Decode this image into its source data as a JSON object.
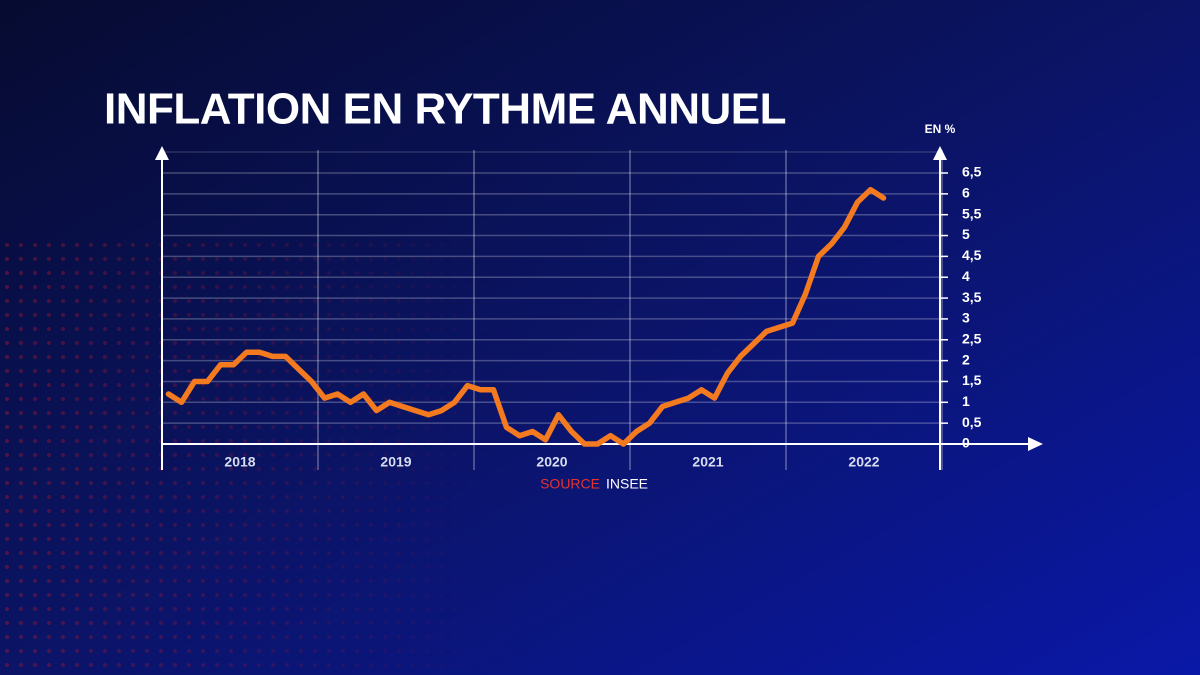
{
  "chart_data": {
    "type": "line",
    "title": "INFLATION EN RYTHME ANNUEL",
    "y_label": "EN %",
    "source_label": "SOURCE",
    "source": "INSEE",
    "categories": [
      null,
      null,
      null,
      null,
      null,
      null,
      "2018",
      null,
      null,
      null,
      null,
      null,
      null,
      null,
      null,
      null,
      null,
      null,
      "2019",
      null,
      null,
      null,
      null,
      null,
      null,
      null,
      null,
      null,
      null,
      null,
      "2020",
      null,
      null,
      null,
      null,
      null,
      null,
      null,
      null,
      null,
      null,
      null,
      "2021",
      null,
      null,
      null,
      null,
      null,
      null,
      null,
      null,
      null,
      null,
      null,
      "2022",
      null
    ],
    "series": [
      {
        "name": "Inflation",
        "color": "#f47a20",
        "values": [
          1.2,
          1.0,
          1.5,
          1.5,
          1.9,
          1.9,
          2.2,
          2.2,
          2.1,
          2.1,
          1.8,
          1.5,
          1.1,
          1.2,
          1.0,
          1.2,
          0.8,
          1.0,
          0.9,
          0.8,
          0.7,
          0.8,
          1.0,
          1.4,
          1.3,
          1.3,
          0.4,
          0.2,
          0.3,
          0.1,
          0.7,
          0.3,
          0.0,
          0.0,
          0.2,
          0.0,
          0.3,
          0.5,
          0.9,
          1.0,
          1.1,
          1.3,
          1.1,
          1.7,
          2.1,
          2.4,
          2.7,
          2.8,
          2.9,
          3.6,
          4.5,
          4.8,
          5.2,
          5.8,
          6.1,
          5.9
        ]
      }
    ],
    "ylim": [
      0,
      6.5
    ],
    "yticks": [
      0,
      {
        "value": 0.5,
        "label": "0,5"
      },
      1,
      {
        "value": 1.5,
        "label": "1,5"
      },
      2,
      {
        "value": 2.5,
        "label": "2,5"
      },
      3,
      {
        "value": 3.5,
        "label": "3,5"
      },
      4,
      {
        "value": 4.5,
        "label": "4,5"
      },
      5,
      {
        "value": 5.5,
        "label": "5,5"
      },
      6,
      {
        "value": 6.5,
        "label": "6,5"
      }
    ],
    "grid": true
  }
}
